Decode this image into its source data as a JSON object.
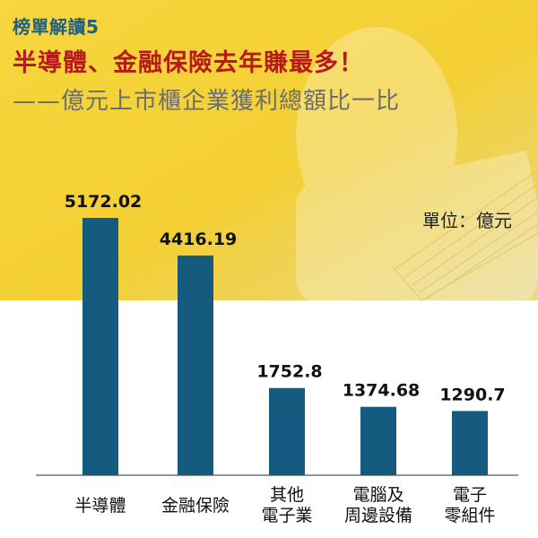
{
  "header": {
    "kicker": "榜單解讀5",
    "title": "半導體、金融保險去年賺最多！",
    "subtitle": "——億元上市櫃企業獲利總額比一比",
    "unit": "單位：億元"
  },
  "colors": {
    "bar": "#155b7f",
    "background_top": "#f4d23a",
    "title": "#b8191b",
    "kicker": "#1f5f86"
  },
  "chart_data": {
    "type": "bar",
    "categories": [
      "半導體",
      "金融保險",
      "其他\n電子業",
      "電腦及\n周邊設備",
      "電子\n零組件"
    ],
    "values": [
      5172.02,
      4416.19,
      1752.8,
      1374.68,
      1290.7
    ],
    "value_labels": [
      "5172.02",
      "4416.19",
      "1752.8",
      "1374.68",
      "1290.7"
    ],
    "title": "半導體、金融保險去年賺最多！",
    "xlabel": "",
    "ylabel": "單位：億元",
    "ylim": [
      0,
      5500
    ],
    "grid": false,
    "legend": "none"
  }
}
